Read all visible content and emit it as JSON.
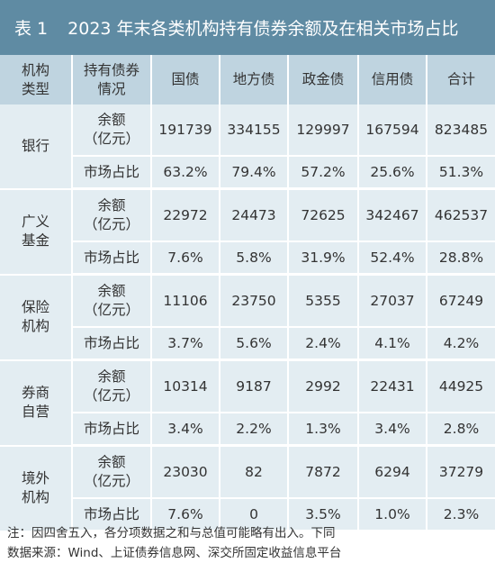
{
  "title": {
    "number": "表 1",
    "text": "2023 年末各类机构持有债券余额及在相关市场占比"
  },
  "headers": {
    "col1_line1": "机构",
    "col1_line2": "类型",
    "col2_line1": "持有债券",
    "col2_line2": "情况",
    "bonds": [
      "国债",
      "地方债",
      "政金债",
      "信用债",
      "合计"
    ]
  },
  "row_labels": {
    "amount_line1": "余额",
    "amount_line2": "（亿元）",
    "share": "市场占比"
  },
  "institutions": [
    {
      "name_line1": "银行",
      "name_line2": "",
      "amounts": [
        "191739",
        "334155",
        "129997",
        "167594",
        "823485"
      ],
      "shares": [
        "63.2%",
        "79.4%",
        "57.2%",
        "25.6%",
        "51.3%"
      ]
    },
    {
      "name_line1": "广义",
      "name_line2": "基金",
      "amounts": [
        "22972",
        "24473",
        "72625",
        "342467",
        "462537"
      ],
      "shares": [
        "7.6%",
        "5.8%",
        "31.9%",
        "52.4%",
        "28.8%"
      ]
    },
    {
      "name_line1": "保险",
      "name_line2": "机构",
      "amounts": [
        "11106",
        "23750",
        "5355",
        "27037",
        "67249"
      ],
      "shares": [
        "3.7%",
        "5.6%",
        "2.4%",
        "4.1%",
        "4.2%"
      ]
    },
    {
      "name_line1": "券商",
      "name_line2": "自营",
      "amounts": [
        "10314",
        "9187",
        "2992",
        "22431",
        "44925"
      ],
      "shares": [
        "3.4%",
        "2.2%",
        "1.3%",
        "3.4%",
        "2.8%"
      ]
    },
    {
      "name_line1": "境外",
      "name_line2": "机构",
      "amounts": [
        "23030",
        "82",
        "7872",
        "6294",
        "37279"
      ],
      "shares": [
        "7.6%",
        "0",
        "3.5%",
        "1.0%",
        "2.3%"
      ]
    }
  ],
  "notes": {
    "note": "注：因四舍五入，各分项数据之和与总值可能略有出入。下同",
    "source": "数据来源：Wind、上证债券信息网、深交所固定收益信息平台"
  }
}
